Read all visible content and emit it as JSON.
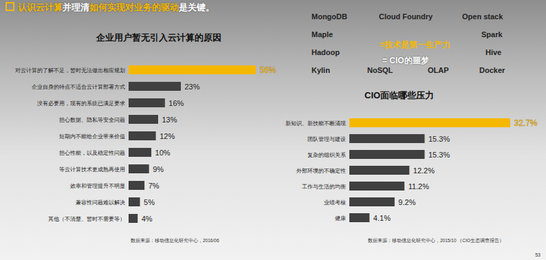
{
  "header": {
    "segments": [
      {
        "text": "认识云计算",
        "highlight": true
      },
      {
        "text": "并理清",
        "highlight": false
      },
      {
        "text": "如何实现对业务的驱动",
        "highlight": true
      },
      {
        "text": "是关键。",
        "highlight": false
      }
    ]
  },
  "chart_data": [
    {
      "type": "bar",
      "orientation": "horizontal",
      "title": "企业用户暂无引入云计算的原因",
      "categories": [
        "对云计算的了解不足，暂时无法做出相应规划",
        "企业自身的特点不适合云计算部署方式",
        "没有必要用，现有的系统已满足要求",
        "担心数据、隐私等安全问题",
        "短期内不能给企业带来价值",
        "担心性能，以及稳定性问题",
        "等云计算技术更成熟再使用",
        "效率和管理提升不明显",
        "兼容性问题难以解决",
        "其他（不清楚、暂时不需要等）"
      ],
      "values": [
        56,
        23,
        16,
        13,
        12,
        10,
        9,
        7,
        5,
        4
      ],
      "value_labels": [
        "56%",
        "23%",
        "16%",
        "13%",
        "12%",
        "10%",
        "9%",
        "7%",
        "5%",
        "4%"
      ],
      "colors": [
        "#f5b800",
        "#404040",
        "#404040",
        "#404040",
        "#404040",
        "#404040",
        "#404040",
        "#404040",
        "#404040",
        "#404040"
      ],
      "xlim": [
        0,
        56
      ],
      "data_labels": true,
      "tick_labels": "y",
      "source": "数据来源：移动信息化研究中心，2016/06"
    },
    {
      "type": "bar",
      "orientation": "horizontal",
      "title": "CIO面临哪些压力",
      "categories": [
        "新知识、新技能不断涌现",
        "团队管理与建设",
        "复杂的组织关系",
        "外部环境的不确定性",
        "工作与生活的均衡",
        "业绩考核",
        "健康"
      ],
      "values": [
        32.7,
        15.3,
        15.3,
        12.2,
        11.2,
        9.2,
        4.1
      ],
      "value_labels": [
        "32.7%",
        "15.3%",
        "15.3%",
        "12.2%",
        "11.2%",
        "9.2%",
        "4.1%"
      ],
      "colors": [
        "#f5b800",
        "#404040",
        "#404040",
        "#404040",
        "#404040",
        "#404040",
        "#404040"
      ],
      "xlim": [
        0,
        32.7
      ],
      "data_labels": true,
      "tick_labels": "y",
      "source": "数据来源：移动信息化研究中心，2015/10 （CIO生态调查报告）"
    }
  ],
  "tech_words": [
    "MongoDB",
    "Cloud Foundry",
    "Open stack",
    "Maple",
    "Spark",
    "Hadoop",
    "Hive",
    "Kylin",
    "NoSQL",
    "OLAP",
    "Docker"
  ],
  "slogans": [
    {
      "text": "=技术是第一生产力",
      "highlight": true
    },
    {
      "text": "= CIO的噩梦",
      "highlight": false
    }
  ],
  "page_number": "53"
}
